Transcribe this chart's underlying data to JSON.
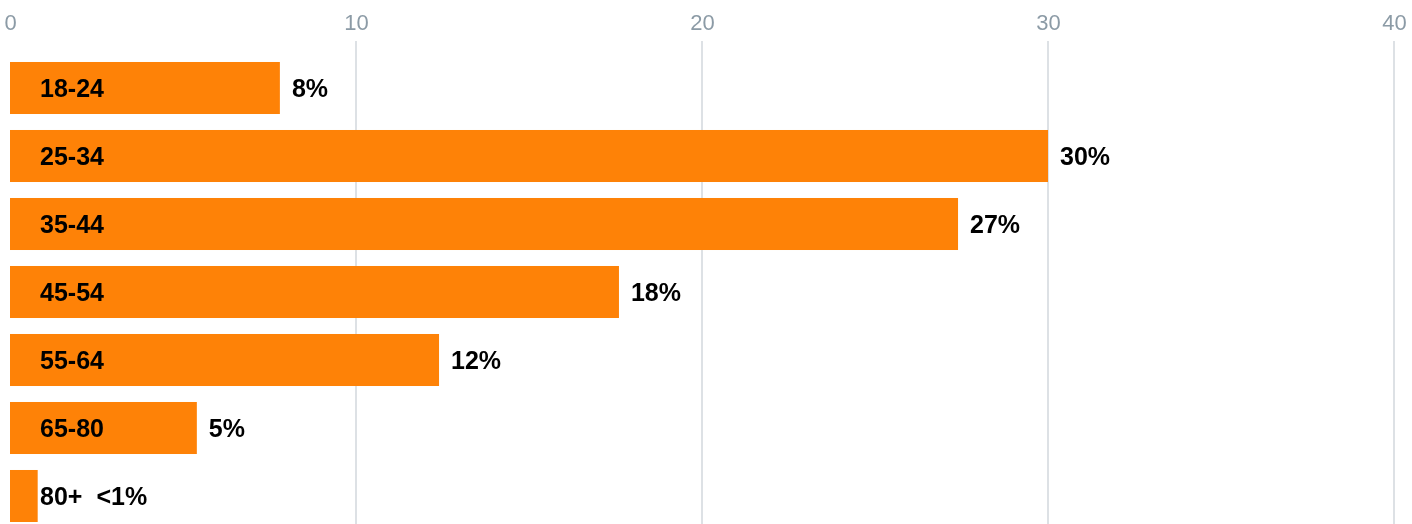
{
  "chart_data": {
    "type": "bar",
    "orientation": "horizontal",
    "categories": [
      "18-24",
      "25-34",
      "35-44",
      "45-54",
      "55-64",
      "65-80",
      "80+"
    ],
    "values": [
      7.8,
      30,
      27.4,
      17.6,
      12.4,
      5.4,
      0.8
    ],
    "value_labels": [
      "8%",
      "30%",
      "27%",
      "18%",
      "12%",
      "5%",
      "<1%"
    ],
    "color": "#fe8207",
    "xlim": [
      0,
      40
    ],
    "xticks": [
      0,
      10,
      20,
      30,
      40
    ],
    "grid": "x"
  }
}
